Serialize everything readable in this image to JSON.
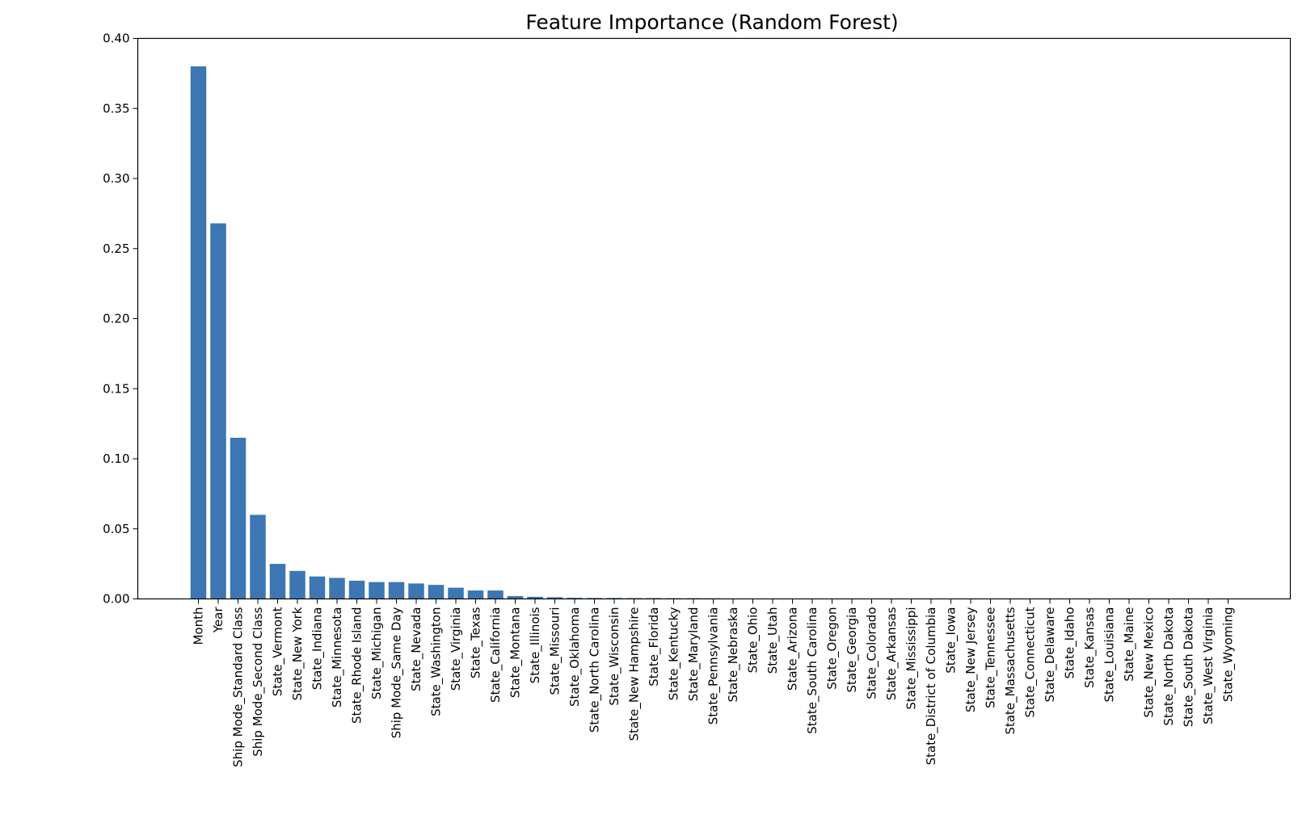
{
  "chart_data": {
    "type": "bar",
    "title": "Feature Importance (Random Forest)",
    "xlabel": "",
    "ylabel": "",
    "ylim": [
      0,
      0.4
    ],
    "yticks": [
      "0.00",
      "0.05",
      "0.10",
      "0.15",
      "0.20",
      "0.25",
      "0.30",
      "0.35",
      "0.40"
    ],
    "grid": false,
    "bar_color": "#3c76b3",
    "categories": [
      "Month",
      "Year",
      "Ship Mode_Standard Class",
      "Ship Mode_Second Class",
      "State_Vermont",
      "State_New York",
      "State_Indiana",
      "State_Minnesota",
      "State_Rhode Island",
      "State_Michigan",
      "Ship Mode_Same Day",
      "State_Nevada",
      "State_Washington",
      "State_Virginia",
      "State_Texas",
      "State_California",
      "State_Montana",
      "State_Illinois",
      "State_Missouri",
      "State_Oklahoma",
      "State_North Carolina",
      "State_Wisconsin",
      "State_New Hampshire",
      "State_Florida",
      "State_Kentucky",
      "State_Maryland",
      "State_Pennsylvania",
      "State_Nebraska",
      "State_Ohio",
      "State_Utah",
      "State_Arizona",
      "State_South Carolina",
      "State_Oregon",
      "State_Georgia",
      "State_Colorado",
      "State_Arkansas",
      "State_Mississippi",
      "State_District of Columbia",
      "State_Iowa",
      "State_New Jersey",
      "State_Tennessee",
      "State_Massachusetts",
      "State_Connecticut",
      "State_Delaware",
      "State_Idaho",
      "State_Kansas",
      "State_Louisiana",
      "State_Maine",
      "State_New Mexico",
      "State_North Dakota",
      "State_South Dakota",
      "State_West Virginia",
      "State_Wyoming"
    ],
    "values": [
      0.38,
      0.268,
      0.115,
      0.06,
      0.025,
      0.02,
      0.016,
      0.015,
      0.013,
      0.012,
      0.012,
      0.011,
      0.01,
      0.008,
      0.006,
      0.006,
      0.002,
      0.0015,
      0.0012,
      0.0008,
      0.0007,
      0.0007,
      0.0006,
      0.0006,
      0.0005,
      0.0005,
      0.0004,
      0.0001,
      0.0001,
      0.0001,
      0.0001,
      0.0001,
      0.0,
      0.0,
      0.0,
      0.0,
      0.0,
      0.0,
      0.0,
      0.0,
      0.0,
      0.0,
      0.0,
      0.0,
      0.0,
      0.0,
      0.0,
      0.0,
      0.0,
      0.0,
      0.0,
      0.0,
      0.0
    ]
  }
}
